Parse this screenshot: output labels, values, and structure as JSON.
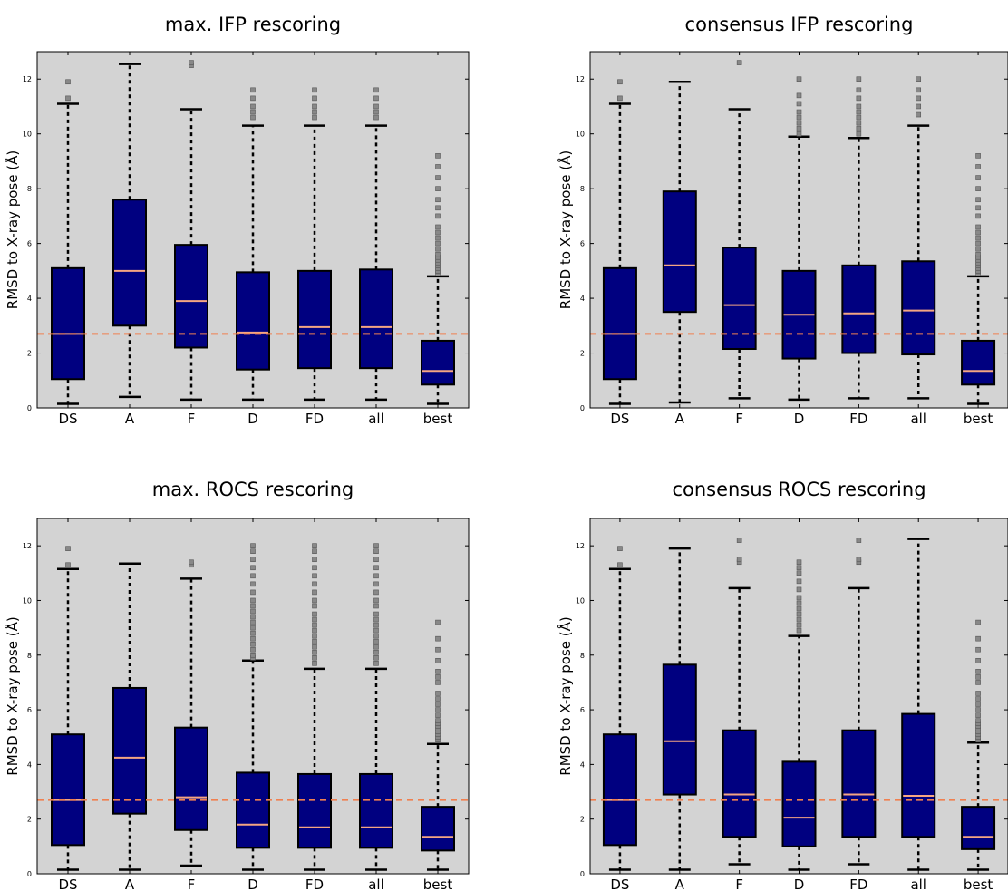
{
  "chart_data": [
    {
      "type": "box",
      "title": "max. IFP rescoring",
      "ylabel": "RMSD to X-ray pose (Å)",
      "xlabel": "",
      "ylim": [
        0,
        13
      ],
      "yticks": [
        "0",
        "2",
        "4",
        "6",
        "8",
        "10",
        "12"
      ],
      "categories": [
        "DS",
        "A",
        "F",
        "D",
        "FD",
        "all",
        "best"
      ],
      "reference_line": 2.7,
      "box_color": "#000080",
      "median_color": "#f4a582",
      "reference_color": "#f08050",
      "boxes": [
        {
          "whisker_low": 0.15,
          "q1": 1.05,
          "median": 2.7,
          "q3": 5.1,
          "whisker_high": 11.1,
          "outliers": [
            11.3,
            11.9
          ]
        },
        {
          "whisker_low": 0.4,
          "q1": 3.0,
          "median": 5.0,
          "q3": 7.6,
          "whisker_high": 12.55,
          "outliers": []
        },
        {
          "whisker_low": 0.3,
          "q1": 2.2,
          "median": 3.9,
          "q3": 5.95,
          "whisker_high": 10.9,
          "outliers": [
            12.5,
            12.6
          ]
        },
        {
          "whisker_low": 0.3,
          "q1": 1.4,
          "median": 2.75,
          "q3": 4.95,
          "whisker_high": 10.3,
          "outliers": [
            10.6,
            10.8,
            11.0,
            11.3,
            11.6
          ]
        },
        {
          "whisker_low": 0.3,
          "q1": 1.45,
          "median": 2.95,
          "q3": 5.0,
          "whisker_high": 10.3,
          "outliers": [
            10.6,
            10.8,
            11.0,
            11.3,
            11.6
          ]
        },
        {
          "whisker_low": 0.3,
          "q1": 1.45,
          "median": 2.95,
          "q3": 5.05,
          "whisker_high": 10.3,
          "outliers": [
            10.6,
            10.8,
            11.0,
            11.3,
            11.6
          ]
        },
        {
          "whisker_low": 0.15,
          "q1": 0.85,
          "median": 1.35,
          "q3": 2.45,
          "whisker_high": 4.8,
          "outliers": [
            4.9,
            5.0,
            5.1,
            5.2,
            5.3,
            5.4,
            5.5,
            5.6,
            5.8,
            6.0,
            6.2,
            6.4,
            6.6,
            7.0,
            7.3,
            7.6,
            8.0,
            8.4,
            8.8,
            9.2
          ]
        }
      ]
    },
    {
      "type": "box",
      "title": "consensus IFP rescoring",
      "ylabel": "RMSD to X-ray pose (Å)",
      "xlabel": "",
      "ylim": [
        0,
        13
      ],
      "yticks": [
        "0",
        "2",
        "4",
        "6",
        "8",
        "10",
        "12"
      ],
      "categories": [
        "DS",
        "A",
        "F",
        "D",
        "FD",
        "all",
        "best"
      ],
      "reference_line": 2.7,
      "box_color": "#000080",
      "median_color": "#f4a582",
      "reference_color": "#f08050",
      "boxes": [
        {
          "whisker_low": 0.15,
          "q1": 1.05,
          "median": 2.7,
          "q3": 5.1,
          "whisker_high": 11.1,
          "outliers": [
            11.3,
            11.9
          ]
        },
        {
          "whisker_low": 0.2,
          "q1": 3.5,
          "median": 5.2,
          "q3": 7.9,
          "whisker_high": 11.9,
          "outliers": []
        },
        {
          "whisker_low": 0.35,
          "q1": 2.15,
          "median": 3.75,
          "q3": 5.85,
          "whisker_high": 10.9,
          "outliers": [
            12.6
          ]
        },
        {
          "whisker_low": 0.3,
          "q1": 1.8,
          "median": 3.4,
          "q3": 5.0,
          "whisker_high": 9.9,
          "outliers": [
            10.0,
            10.2,
            10.4,
            10.6,
            10.8,
            11.1,
            11.4,
            12.0
          ]
        },
        {
          "whisker_low": 0.35,
          "q1": 2.0,
          "median": 3.45,
          "q3": 5.2,
          "whisker_high": 9.85,
          "outliers": [
            10.0,
            10.2,
            10.4,
            10.6,
            10.8,
            11.0,
            11.3,
            11.6,
            12.0
          ]
        },
        {
          "whisker_low": 0.35,
          "q1": 1.95,
          "median": 3.55,
          "q3": 5.35,
          "whisker_high": 10.3,
          "outliers": [
            10.7,
            11.0,
            11.3,
            11.6,
            12.0
          ]
        },
        {
          "whisker_low": 0.15,
          "q1": 0.85,
          "median": 1.35,
          "q3": 2.45,
          "whisker_high": 4.8,
          "outliers": [
            4.9,
            5.0,
            5.1,
            5.2,
            5.3,
            5.4,
            5.5,
            5.6,
            5.8,
            6.0,
            6.2,
            6.4,
            6.6,
            7.0,
            7.3,
            7.6,
            8.0,
            8.4,
            8.8,
            9.2
          ]
        }
      ]
    },
    {
      "type": "box",
      "title": "max. ROCS rescoring",
      "ylabel": "RMSD to X-ray pose (Å)",
      "xlabel": "",
      "ylim": [
        0,
        13
      ],
      "yticks": [
        "0",
        "2",
        "4",
        "6",
        "8",
        "10",
        "12"
      ],
      "categories": [
        "DS",
        "A",
        "F",
        "D",
        "FD",
        "all",
        "best"
      ],
      "reference_line": 2.7,
      "box_color": "#000080",
      "median_color": "#f4a582",
      "reference_color": "#f08050",
      "boxes": [
        {
          "whisker_low": 0.15,
          "q1": 1.05,
          "median": 2.7,
          "q3": 5.1,
          "whisker_high": 11.15,
          "outliers": [
            11.3,
            11.9
          ]
        },
        {
          "whisker_low": 0.15,
          "q1": 2.2,
          "median": 4.25,
          "q3": 6.8,
          "whisker_high": 11.35,
          "outliers": []
        },
        {
          "whisker_low": 0.3,
          "q1": 1.6,
          "median": 2.8,
          "q3": 5.35,
          "whisker_high": 10.8,
          "outliers": [
            11.3,
            11.4
          ]
        },
        {
          "whisker_low": 0.15,
          "q1": 0.95,
          "median": 1.8,
          "q3": 3.7,
          "whisker_high": 7.8,
          "outliers": [
            7.9,
            8.0,
            8.2,
            8.4,
            8.6,
            8.8,
            9.0,
            9.2,
            9.4,
            9.6,
            9.8,
            10.0,
            10.3,
            10.6,
            10.9,
            11.2,
            11.5,
            11.8,
            12.0
          ]
        },
        {
          "whisker_low": 0.15,
          "q1": 0.95,
          "median": 1.7,
          "q3": 3.65,
          "whisker_high": 7.5,
          "outliers": [
            7.7,
            7.9,
            8.1,
            8.3,
            8.5,
            8.7,
            8.9,
            9.1,
            9.3,
            9.5,
            9.8,
            10.0,
            10.3,
            10.6,
            10.9,
            11.2,
            11.5,
            11.8,
            12.0
          ]
        },
        {
          "whisker_low": 0.15,
          "q1": 0.95,
          "median": 1.7,
          "q3": 3.65,
          "whisker_high": 7.5,
          "outliers": [
            7.7,
            7.9,
            8.1,
            8.3,
            8.5,
            8.7,
            8.9,
            9.1,
            9.3,
            9.5,
            9.8,
            10.0,
            10.3,
            10.6,
            10.9,
            11.2,
            11.5,
            11.8,
            12.0
          ]
        },
        {
          "whisker_low": 0.15,
          "q1": 0.85,
          "median": 1.35,
          "q3": 2.45,
          "whisker_high": 4.75,
          "outliers": [
            4.9,
            5.0,
            5.1,
            5.2,
            5.3,
            5.4,
            5.5,
            5.6,
            5.8,
            6.0,
            6.2,
            6.4,
            6.6,
            7.0,
            7.2,
            7.4,
            7.8,
            8.2,
            8.6,
            9.2
          ]
        }
      ]
    },
    {
      "type": "box",
      "title": "consensus ROCS rescoring",
      "ylabel": "RMSD to X-ray pose (Å)",
      "xlabel": "",
      "ylim": [
        0,
        13
      ],
      "yticks": [
        "0",
        "2",
        "4",
        "6",
        "8",
        "10",
        "12"
      ],
      "categories": [
        "DS",
        "A",
        "F",
        "D",
        "FD",
        "all",
        "best"
      ],
      "reference_line": 2.7,
      "box_color": "#000080",
      "median_color": "#f4a582",
      "reference_color": "#f08050",
      "boxes": [
        {
          "whisker_low": 0.15,
          "q1": 1.05,
          "median": 2.7,
          "q3": 5.1,
          "whisker_high": 11.15,
          "outliers": [
            11.3,
            11.9
          ]
        },
        {
          "whisker_low": 0.15,
          "q1": 2.9,
          "median": 4.85,
          "q3": 7.65,
          "whisker_high": 11.9,
          "outliers": []
        },
        {
          "whisker_low": 0.35,
          "q1": 1.35,
          "median": 2.9,
          "q3": 5.25,
          "whisker_high": 10.45,
          "outliers": [
            11.4,
            11.5,
            12.2
          ]
        },
        {
          "whisker_low": 0.15,
          "q1": 1.0,
          "median": 2.05,
          "q3": 4.1,
          "whisker_high": 8.7,
          "outliers": [
            8.9,
            9.1,
            9.3,
            9.5,
            9.7,
            9.9,
            10.1,
            10.4,
            10.7,
            11.0,
            11.2,
            11.4
          ]
        },
        {
          "whisker_low": 0.35,
          "q1": 1.35,
          "median": 2.9,
          "q3": 5.25,
          "whisker_high": 10.45,
          "outliers": [
            11.4,
            11.5,
            12.2
          ]
        },
        {
          "whisker_low": 0.15,
          "q1": 1.35,
          "median": 2.85,
          "q3": 5.85,
          "whisker_high": 12.25,
          "outliers": []
        },
        {
          "whisker_low": 0.15,
          "q1": 0.9,
          "median": 1.35,
          "q3": 2.45,
          "whisker_high": 4.8,
          "outliers": [
            4.9,
            5.0,
            5.1,
            5.2,
            5.3,
            5.4,
            5.5,
            5.6,
            5.8,
            6.0,
            6.2,
            6.4,
            6.6,
            7.0,
            7.2,
            7.4,
            7.8,
            8.2,
            8.6,
            9.2
          ]
        }
      ]
    }
  ]
}
